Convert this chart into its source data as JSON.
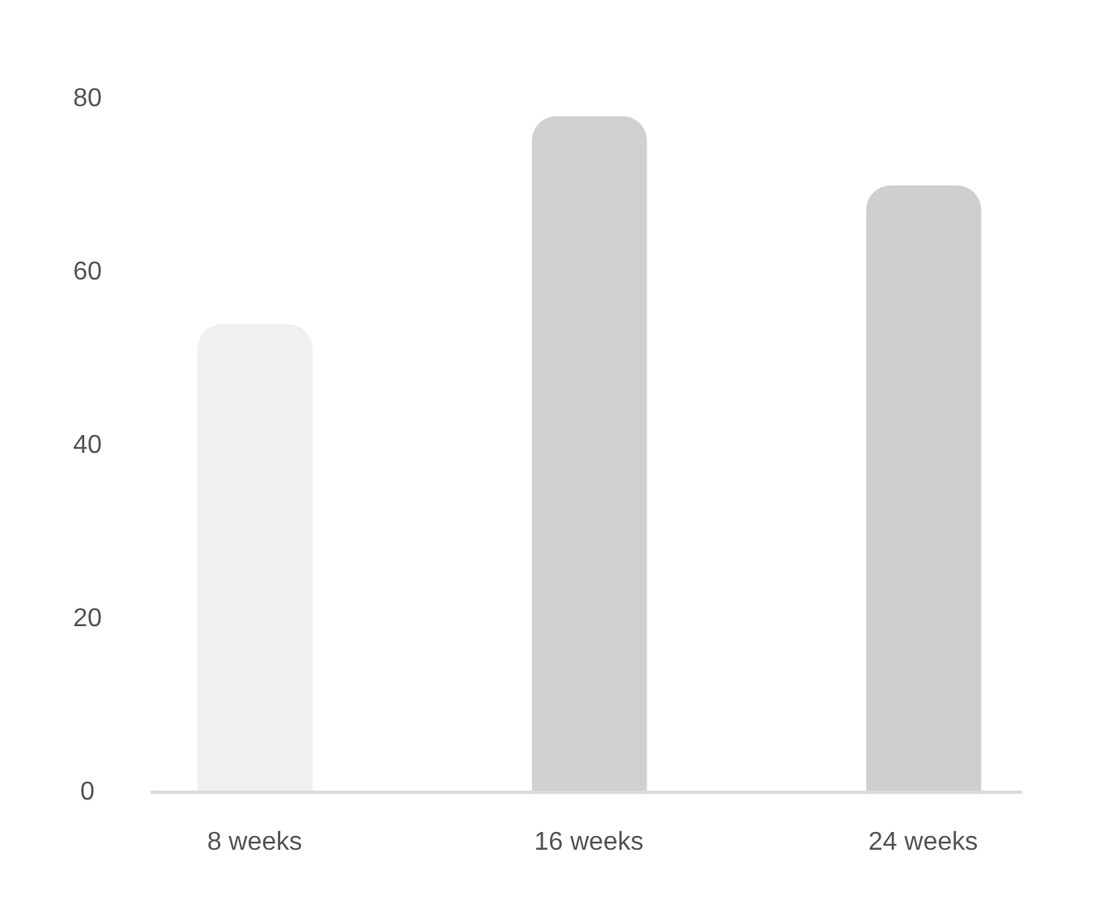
{
  "chart_data": {
    "type": "bar",
    "categories": [
      "8 weeks",
      "16 weeks",
      "24 weeks"
    ],
    "values": [
      54,
      78,
      70
    ],
    "colors": [
      "#f0f0f0",
      "#d0d0d0",
      "#cfcfcf"
    ],
    "ylim": [
      0,
      80
    ],
    "yticks": [
      0,
      20,
      40,
      60,
      80
    ]
  }
}
